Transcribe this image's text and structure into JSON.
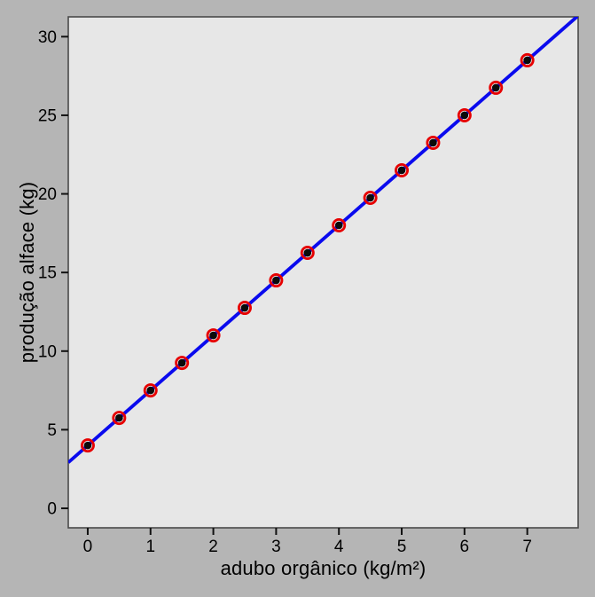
{
  "chart_data": {
    "type": "scatter",
    "title": "",
    "xlabel": "adubo orgânico (kg/m²)",
    "ylabel": "produção alface (kg)",
    "x": [
      0,
      0.5,
      1,
      1.5,
      2,
      2.5,
      3,
      3.5,
      4,
      4.5,
      5,
      5.5,
      6,
      6.5,
      7
    ],
    "y": [
      4,
      5.75,
      7.5,
      9.25,
      11,
      12.75,
      14.5,
      16.25,
      18,
      19.75,
      21.5,
      23.25,
      25,
      26.75,
      28.5
    ],
    "fit_line": {
      "intercept": 4,
      "slope": 3.5,
      "color": "#0a0aee",
      "width": 3.8
    },
    "x_ticks": [
      0,
      1,
      2,
      3,
      4,
      5,
      6,
      7
    ],
    "y_ticks": [
      0,
      5,
      10,
      15,
      20,
      25,
      30
    ],
    "xlim": [
      -0.31,
      7.81
    ],
    "ylim": [
      -1.24,
      31.26
    ],
    "grid": false,
    "legend_position": "none",
    "marker": {
      "ring_color": "#e60000",
      "ring_radius": 6.6,
      "ring_stroke": 2.8,
      "dot_color": "#0a0a0a",
      "dot_radius": 4.3
    },
    "colors": {
      "panel_bg": "#e7e7e7",
      "outer_bg": "#b5b5b5",
      "panel_border": "#4a4a4a",
      "tick_color": "#111111"
    }
  }
}
